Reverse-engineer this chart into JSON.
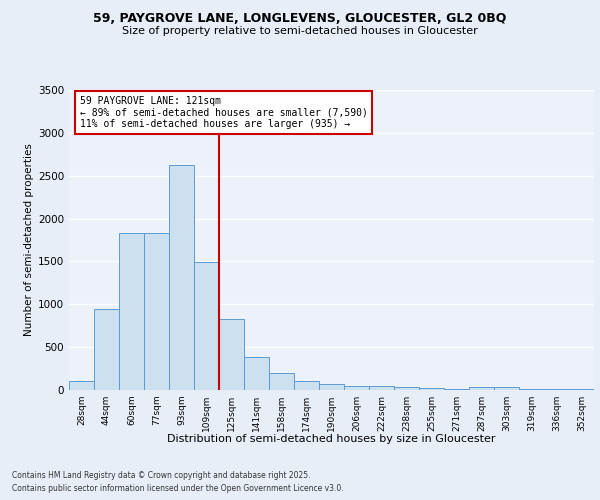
{
  "title1": "59, PAYGROVE LANE, LONGLEVENS, GLOUCESTER, GL2 0BQ",
  "title2": "Size of property relative to semi-detached houses in Gloucester",
  "xlabel": "Distribution of semi-detached houses by size in Gloucester",
  "ylabel": "Number of semi-detached properties",
  "categories": [
    "28sqm",
    "44sqm",
    "60sqm",
    "77sqm",
    "93sqm",
    "109sqm",
    "125sqm",
    "141sqm",
    "158sqm",
    "174sqm",
    "190sqm",
    "206sqm",
    "222sqm",
    "238sqm",
    "255sqm",
    "271sqm",
    "287sqm",
    "303sqm",
    "319sqm",
    "336sqm",
    "352sqm"
  ],
  "values": [
    100,
    950,
    1830,
    1830,
    2630,
    1490,
    830,
    390,
    200,
    110,
    65,
    50,
    45,
    30,
    20,
    15,
    40,
    35,
    10,
    10,
    10
  ],
  "bar_color": "#cce0f0",
  "bar_edge_color": "#5b9bd5",
  "vline_color": "#cc0000",
  "annotation_title": "59 PAYGROVE LANE: 121sqm",
  "annotation_line1": "← 89% of semi-detached houses are smaller (7,590)",
  "annotation_line2": "11% of semi-detached houses are larger (935) →",
  "annotation_box_color": "#cc0000",
  "vline_x": 5.5,
  "ylim": [
    0,
    3500
  ],
  "yticks": [
    0,
    500,
    1000,
    1500,
    2000,
    2500,
    3000,
    3500
  ],
  "footer1": "Contains HM Land Registry data © Crown copyright and database right 2025.",
  "footer2": "Contains public sector information licensed under the Open Government Licence v3.0.",
  "bg_color": "#e8eef8",
  "plot_bg_color": "#edf2fa"
}
